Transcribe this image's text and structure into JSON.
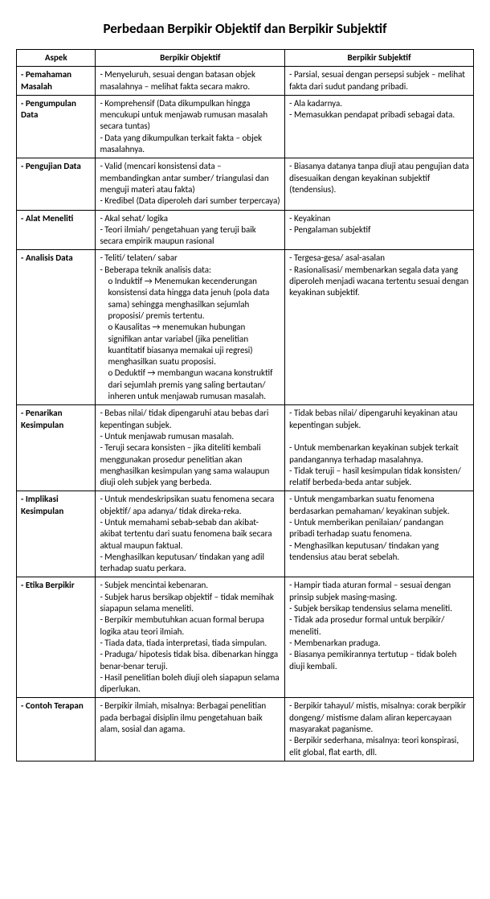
{
  "title": "Perbedaan Berpikir Objektif dan Berpikir Subjektif",
  "headers": {
    "aspek": "Aspek",
    "objektif": "Berpikir Objektif",
    "subjektif": "Berpikir Subjektif"
  },
  "rows": {
    "r1": {
      "aspek": "- Pemahaman Masalah",
      "obj": "- Menyeluruh, sesuai dengan batasan objek masalahnya – melihat fakta secara makro.",
      "subj": "- Parsial, sesuai dengan persepsi subjek – melihat fakta dari sudut pandang pribadi."
    },
    "r2": {
      "aspek": "- Pengumpulan Data",
      "obj1": "- Komprehensif (Data dikumpulkan hingga mencukupi untuk menjawab rumusan masalah secara tuntas)",
      "obj2": "- Data yang dikumpulkan terkait fakta – objek masalahnya.",
      "subj1": "- Ala kadarnya.",
      "subj2": "- Memasukkan pendapat pribadi sebagai data."
    },
    "r3": {
      "aspek": "- Pengujian Data",
      "obj1": "- Valid (mencari konsistensi data – membandingkan antar sumber/ triangulasi dan menguji materi atau fakta)",
      "obj2": "- Kredibel (Data diperoleh dari sumber terpercaya)",
      "subj": "- Biasanya datanya tanpa diuji atau pengujian data disesuaikan dengan keyakinan subjektif (tendensius)."
    },
    "r4": {
      "aspek": "- Alat Meneliti",
      "obj1": "- Akal sehat/ logika",
      "obj2": "- Teori ilmiah/ pengetahuan yang teruji baik secara empirik maupun rasional",
      "subj1": "- Keyakinan",
      "subj2": "- Pengalaman subjektif"
    },
    "r5": {
      "aspek": "- Analisis Data",
      "obj1": "- Teliti/ telaten/ sabar",
      "obj2": "- Beberapa teknik analisis data:",
      "obj2a": "o Induktif → Menemukan kecenderungan konsistensi data hingga data jenuh (pola data sama) sehingga menghasilkan sejumlah proposisi/ premis tertentu.",
      "obj2b": "o Kausalitas → menemukan hubungan signifikan antar variabel (jika penelitian kuantitatif biasanya memakai uji regresi) menghasilkan suatu proposisi.",
      "obj2c": "o Deduktif → membangun wacana konstruktif dari sejumlah premis yang saling bertautan/ inheren untuk menjawab rumusan masalah.",
      "subj1": "- Tergesa-gesa/ asal-asalan",
      "subj2": "- Rasionalisasi/ membenarkan segala data yang diperoleh menjadi wacana tertentu sesuai dengan keyakinan subjektif."
    },
    "r6": {
      "aspek": "- Penarikan Kesimpulan",
      "obj1": "- Bebas nilai/ tidak dipengaruhi atau bebas dari kepentingan subjek.",
      "obj2": "- Untuk menjawab rumusan masalah.",
      "obj3": "- Teruji secara konsisten – jika diteliti kembali menggunakan prosedur penelitian akan menghasilkan kesimpulan yang sama walaupun diuji oleh subjek yang berbeda.",
      "subj1": "- Tidak bebas nilai/ dipengaruhi keyakinan atau kepentingan subjek.",
      "subj2": "- Untuk membenarkan keyakinan subjek terkait pandangannya terhadap masalahnya.",
      "subj3": "- Tidak teruji – hasil kesimpulan tidak konsisten/ relatif berbeda-beda antar subjek."
    },
    "r7": {
      "aspek": "- Implikasi Kesimpulan",
      "obj1": "- Untuk mendeskripsikan suatu fenomena secara objektif/ apa adanya/ tidak direka-reka.",
      "obj2": "- Untuk memahami sebab-sebab dan akibat-akibat tertentu dari suatu fenomena baik secara aktual maupun faktual.",
      "obj3": "- Menghasilkan keputusan/ tindakan yang adil terhadap suatu perkara.",
      "subj1": "- Untuk mengambarkan suatu fenomena berdasarkan pemahaman/ keyakinan subjek.",
      "subj2": "- Untuk memberikan penilaian/ pandangan pribadi terhadap suatu fenomena.",
      "subj3": "- Menghasilkan keputusan/ tindakan yang tendensius atau berat sebelah."
    },
    "r8": {
      "aspek": "- Etika Berpikir",
      "obj1": "- Subjek mencintai kebenaran.",
      "obj2": "- Subjek harus bersikap objektif – tidak memihak siapapun selama meneliti.",
      "obj3": "- Berpikir membutuhkan acuan formal berupa logika atau teori ilmiah.",
      "obj4": "- Tiada data, tiada interpretasi, tiada simpulan.",
      "obj5": "- Praduga/ hipotesis tidak bisa. dibenarkan hingga benar-benar teruji.",
      "obj6": "- Hasil penelitian boleh diuji oleh siapapun selama diperlukan.",
      "subj1": "- Hampir tiada aturan formal – sesuai dengan prinsip subjek masing-masing.",
      "subj2": "- Subjek bersikap tendensius selama meneliti.",
      "subj3": "- Tidak ada prosedur formal untuk berpikir/ meneliti.",
      "subj4": "- Membenarkan praduga.",
      "subj5": "- Biasanya pemikirannya tertutup – tidak boleh diuji kembali."
    },
    "r9": {
      "aspek": "- Contoh Terapan",
      "obj": "- Berpikir ilmiah, misalnya: Berbagai penelitian pada berbagai disiplin ilmu pengetahuan baik alam, sosial dan agama.",
      "subj1": "- Berpikir tahayul/ mistis, misalnya: corak berpikir dongeng/ mistisme dalam aliran kepercayaan masyarakat paganisme.",
      "subj2": "- Berpikir sederhana, misalnya: teori konspirasi, elit global, flat earth, dll."
    }
  }
}
